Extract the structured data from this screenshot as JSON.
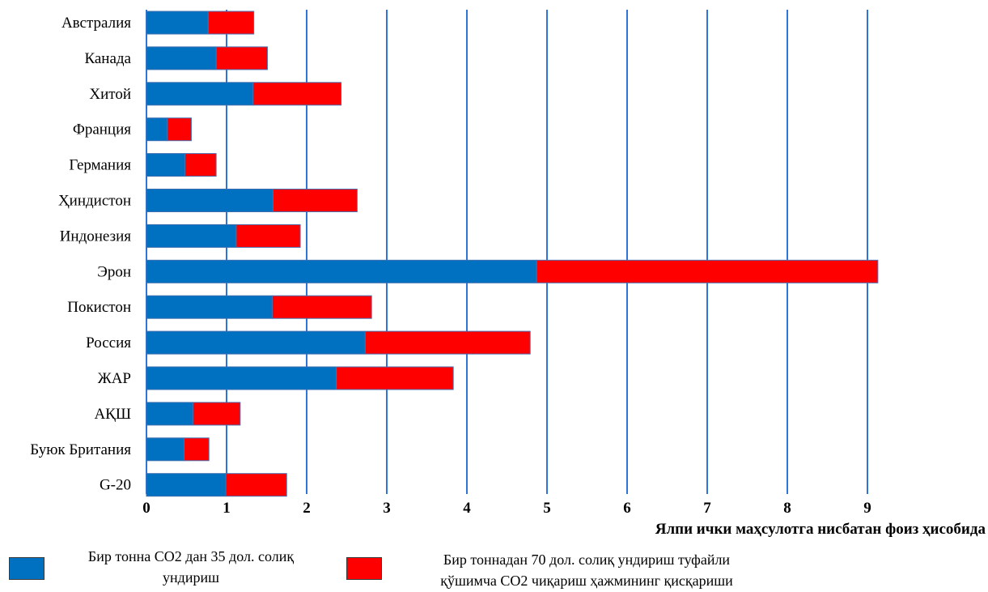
{
  "chart_data": {
    "type": "bar",
    "orientation": "horizontal",
    "stacked": true,
    "categories": [
      "Австралия",
      "Канада",
      "Хитой",
      "Франция",
      "Германия",
      "Ҳиндистон",
      "Индонезия",
      "Эрон",
      "Покистон",
      "Россия",
      "ЖАР",
      "АҚШ",
      "Буюк Британия",
      "G-20"
    ],
    "series": [
      {
        "name": "Бир тонна СО2 дан 35 дол. солиқ ундириш",
        "color": "#0070c0",
        "values": [
          0.77,
          0.87,
          1.33,
          0.26,
          0.48,
          1.58,
          1.12,
          4.87,
          1.57,
          2.73,
          2.37,
          0.58,
          0.47,
          0.99
        ]
      },
      {
        "name": "Бир тоннадан 70 дол. солиқ ундириш туфайли қўшимча СО2 чиқариш ҳажмининг қисқариши",
        "color": "#ff0000",
        "values": [
          0.57,
          0.64,
          1.1,
          0.3,
          0.39,
          1.05,
          0.8,
          4.26,
          1.24,
          2.06,
          1.46,
          0.59,
          0.31,
          0.76
        ]
      }
    ],
    "xticks": [
      "0",
      "1",
      "2",
      "3",
      "4",
      "5",
      "6",
      "7",
      "8",
      "9"
    ],
    "xlim": [
      0,
      10.3
    ],
    "xlabel": "Ялпи ички маҳсулотга нисбатан фоиз ҳисобида",
    "grid": "vertical",
    "gridColor": "#2e75d6",
    "legend_position": "bottom"
  },
  "legend": {
    "item1_line1": "Бир тонна СО2 дан 35 дол. солиқ",
    "item1_line2": "ундириш",
    "item2_line1": "Бир тоннадан 70 дол. солиқ ундириш туфайли",
    "item2_line2": "қўшимча СО2 чиқариш ҳажмининг қисқариши"
  }
}
